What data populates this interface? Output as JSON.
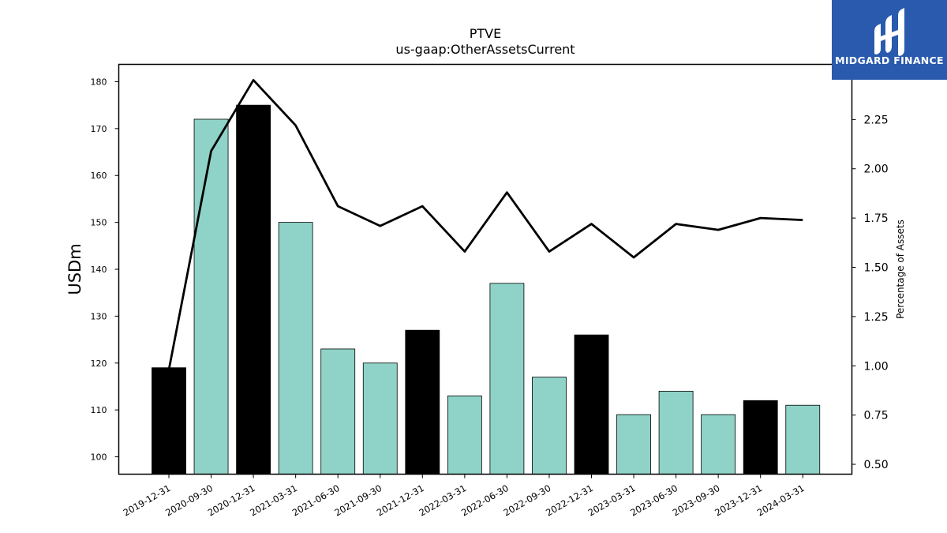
{
  "chart_data": {
    "type": "bar",
    "title": "PTVE",
    "subtitle": "us-gaap:OtherAssetsCurrent",
    "ylabel": "USDm",
    "y2label": "Percentage of Assets",
    "categories": [
      "2019-12-31",
      "2020-09-30",
      "2020-12-31",
      "2021-03-31",
      "2021-06-30",
      "2021-09-30",
      "2021-12-31",
      "2022-03-31",
      "2022-06-30",
      "2022-09-30",
      "2022-12-31",
      "2023-03-31",
      "2023-06-30",
      "2023-09-30",
      "2023-12-31",
      "2024-03-31"
    ],
    "series": [
      {
        "name": "",
        "type": "bar",
        "axis": "left",
        "values": [
          119,
          172,
          175,
          150,
          123,
          120,
          127,
          113,
          137,
          117,
          126,
          109,
          114,
          109,
          112,
          111
        ],
        "bar_colors": [
          "#000000",
          "#8fd3c8",
          "#000000",
          "#8fd3c8",
          "#8fd3c8",
          "#8fd3c8",
          "#000000",
          "#8fd3c8",
          "#8fd3c8",
          "#8fd3c8",
          "#000000",
          "#8fd3c8",
          "#8fd3c8",
          "#8fd3c8",
          "#000000",
          "#8fd3c8"
        ]
      },
      {
        "name": "",
        "type": "line",
        "axis": "right",
        "color": "#000000",
        "values": [
          0.98,
          2.09,
          2.45,
          2.22,
          1.81,
          1.71,
          1.81,
          1.58,
          1.88,
          1.58,
          1.72,
          1.55,
          1.72,
          1.69,
          1.75,
          1.74
        ]
      }
    ],
    "ylim": [
      96.3,
      183.7
    ],
    "y2lim": [
      0.45,
      2.53
    ],
    "yticks": [
      100,
      110,
      120,
      130,
      140,
      150,
      160,
      170,
      180
    ],
    "y2ticks": [
      0.5,
      0.75,
      1.0,
      1.25,
      1.5,
      1.75,
      2.0,
      2.25
    ],
    "y2tick_labels": [
      "0.50",
      "0.75",
      "1.00",
      "1.25",
      "1.50",
      "1.75",
      "2.00",
      "2.25"
    ],
    "grid": false,
    "legend": "none"
  },
  "logo": {
    "text": "MIDGARD FINANCE",
    "background": "#2a5aad",
    "icon": "midgard-logo-icon"
  }
}
